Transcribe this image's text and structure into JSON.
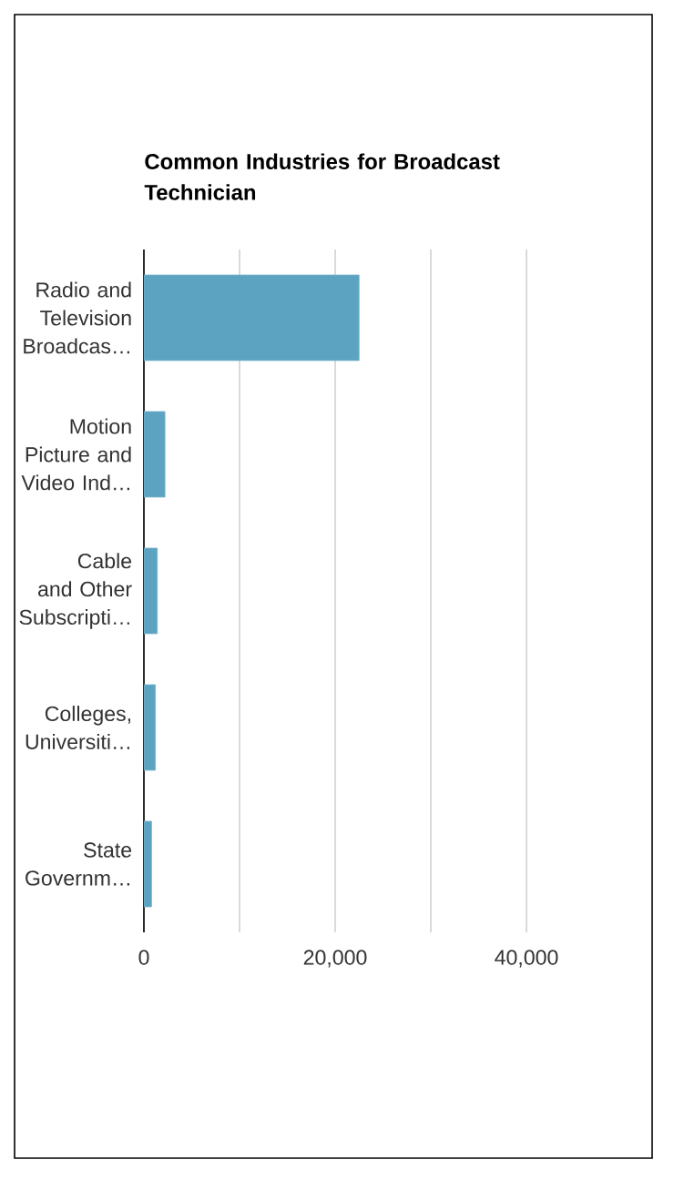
{
  "chart_data": {
    "type": "bar",
    "orientation": "horizontal",
    "title": "Common Industries for Broadcast Technician",
    "categories": [
      "Radio and Television Broadcas…",
      "Motion Picture and Video Ind…",
      "Cable and Other Subscripti…",
      "Colleges, Universiti…",
      "State Governm…"
    ],
    "values": [
      22500,
      2200,
      1400,
      1200,
      800
    ],
    "color": "#5ba3c1",
    "xlim": [
      0,
      40000
    ],
    "xticks": [
      0,
      {
        "value": 10000,
        "label": null
      },
      {
        "value": 20000,
        "label": "20,000"
      },
      {
        "value": 30000,
        "label": null
      },
      {
        "value": 40000,
        "label": "40,000"
      }
    ],
    "grid": "x"
  }
}
